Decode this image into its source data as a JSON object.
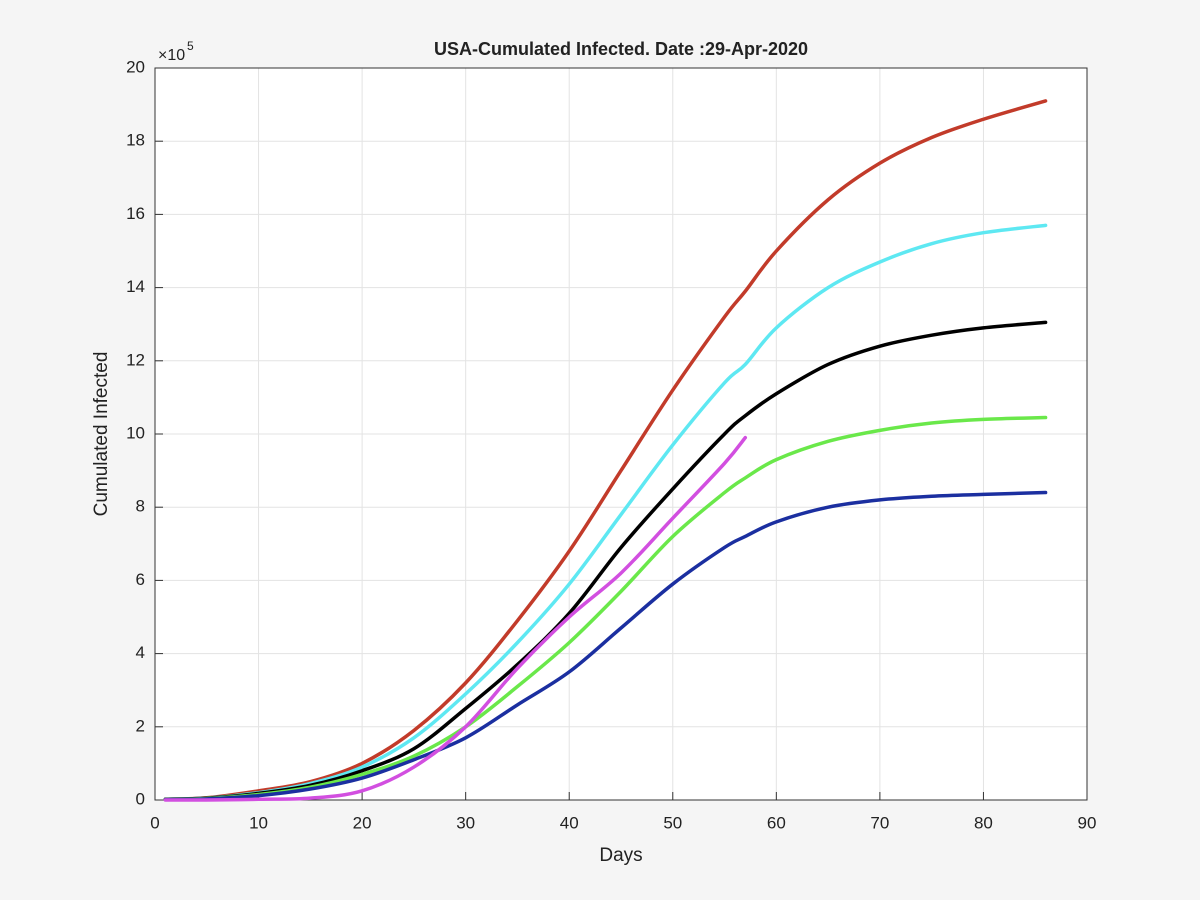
{
  "chart_data": {
    "type": "line",
    "title": "USA-Cumulated Infected. Date :29-Apr-2020",
    "x_label": "Days",
    "y_label": "Cumulated Infected",
    "y_multiplier": "×10",
    "y_multiplier_exponent": "5",
    "x": [
      1,
      5,
      10,
      15,
      20,
      25,
      30,
      35,
      40,
      45,
      50,
      55,
      57,
      60,
      65,
      70,
      75,
      80,
      86
    ],
    "series": [
      {
        "color": "#c23b2a",
        "values": [
          0.02,
          0.06,
          0.25,
          0.5,
          1.0,
          1.9,
          3.2,
          4.9,
          6.8,
          9.0,
          11.2,
          13.2,
          13.9,
          15.0,
          16.4,
          17.4,
          18.1,
          18.6,
          19.1
        ]
      },
      {
        "color": "#5ee8f2",
        "values": [
          0.02,
          0.05,
          0.2,
          0.45,
          0.9,
          1.7,
          2.9,
          4.3,
          5.9,
          7.8,
          9.7,
          11.4,
          11.9,
          12.9,
          14.0,
          14.7,
          15.2,
          15.5,
          15.7
        ]
      },
      {
        "color": "#000000",
        "values": [
          0.02,
          0.05,
          0.18,
          0.4,
          0.8,
          1.4,
          2.5,
          3.7,
          5.1,
          6.9,
          8.5,
          10.0,
          10.5,
          11.1,
          11.9,
          12.4,
          12.7,
          12.9,
          13.05
        ]
      },
      {
        "color": "#6ae84a",
        "values": [
          0.01,
          0.04,
          0.15,
          0.35,
          0.7,
          1.2,
          2.0,
          3.1,
          4.3,
          5.7,
          7.2,
          8.4,
          8.8,
          9.3,
          9.8,
          10.1,
          10.3,
          10.4,
          10.45
        ]
      },
      {
        "color": "#1b2fa0",
        "values": [
          0.01,
          0.03,
          0.12,
          0.3,
          0.6,
          1.1,
          1.7,
          2.6,
          3.5,
          4.7,
          5.9,
          6.9,
          7.2,
          7.6,
          8.0,
          8.2,
          8.3,
          8.35,
          8.4
        ]
      },
      {
        "color": "#d24fe0",
        "values": [
          0,
          0,
          0.02,
          0.05,
          0.25,
          0.9,
          2.0,
          3.6,
          5.0,
          6.2,
          7.7,
          9.2,
          9.9,
          null,
          null,
          null,
          null,
          null,
          null
        ]
      }
    ],
    "xlim": [
      0,
      90
    ],
    "xticks": [
      0,
      10,
      20,
      30,
      40,
      50,
      60,
      70,
      80,
      90
    ],
    "ylim": [
      0,
      20
    ],
    "yticks": [
      0,
      2,
      4,
      6,
      8,
      10,
      12,
      14,
      16,
      18,
      20
    ],
    "grid": true
  }
}
